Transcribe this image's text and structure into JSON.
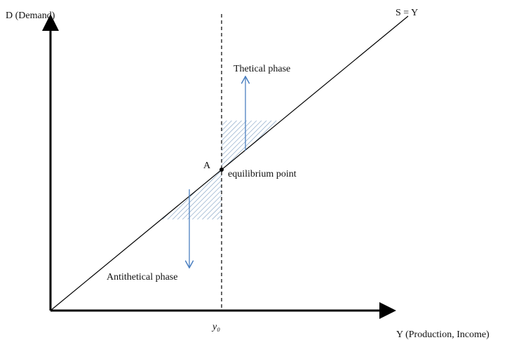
{
  "labels": {
    "y_axis": "D (Demand)",
    "x_axis": "Y (Production, Income)",
    "line": "S = Y",
    "upper_phase": "Thetical phase",
    "lower_phase": "Antithetical phase",
    "point_name": "A",
    "point_label": "equilibrium point",
    "x_marker": "y₀"
  }
}
